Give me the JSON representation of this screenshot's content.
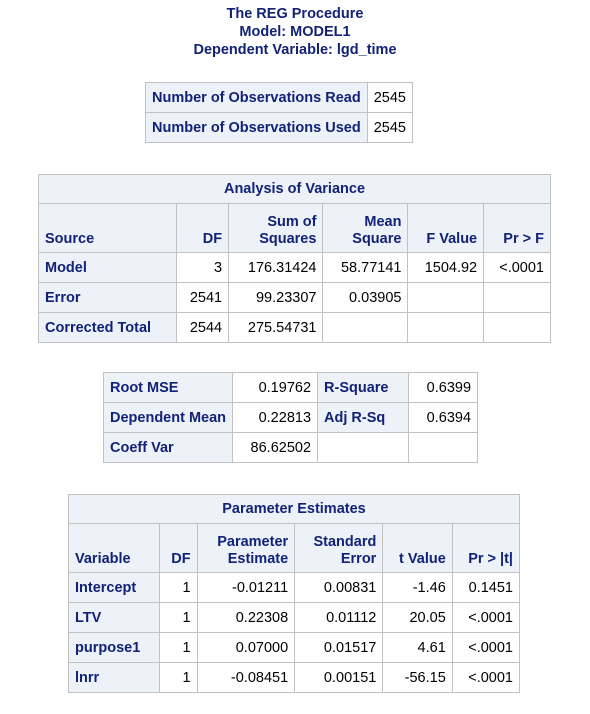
{
  "titles": {
    "line1": "The REG Procedure",
    "line2": "Model: MODEL1",
    "line3": "Dependent Variable: lgd_time"
  },
  "nobs": {
    "rows": [
      {
        "label": "Number of Observations Read",
        "value": "2545"
      },
      {
        "label": "Number of Observations Used",
        "value": "2545"
      }
    ]
  },
  "anova": {
    "title": "Analysis of Variance",
    "headers": {
      "source": "Source",
      "df": "DF",
      "ss_1": "Sum of",
      "ss_2": "Squares",
      "ms_1": "Mean",
      "ms_2": "Square",
      "f": "F Value",
      "p": "Pr > F"
    },
    "rows": [
      {
        "source": "Model",
        "df": "3",
        "ss": "176.31424",
        "ms": "58.77141",
        "f": "1504.92",
        "p": "<.0001"
      },
      {
        "source": "Error",
        "df": "2541",
        "ss": "99.23307",
        "ms": "0.03905",
        "f": "",
        "p": ""
      },
      {
        "source": "Corrected Total",
        "df": "2544",
        "ss": "275.54731",
        "ms": "",
        "f": "",
        "p": ""
      }
    ]
  },
  "fit": {
    "rows": [
      {
        "label1": "Root MSE",
        "value1": "0.19762",
        "label2": "R-Square",
        "value2": "0.6399"
      },
      {
        "label1": "Dependent Mean",
        "value1": "0.22813",
        "label2": "Adj R-Sq",
        "value2": "0.6394"
      },
      {
        "label1": "Coeff Var",
        "value1": "86.62502",
        "label2": "",
        "value2": ""
      }
    ]
  },
  "params": {
    "title": "Parameter Estimates",
    "headers": {
      "variable": "Variable",
      "df": "DF",
      "est_1": "Parameter",
      "est_2": "Estimate",
      "se_1": "Standard",
      "se_2": "Error",
      "t": "t Value",
      "p": "Pr > |t|"
    },
    "rows": [
      {
        "variable": "Intercept",
        "df": "1",
        "est": "-0.01211",
        "se": "0.00831",
        "t": "-1.46",
        "p": "0.1451"
      },
      {
        "variable": "LTV",
        "df": "1",
        "est": "0.22308",
        "se": "0.01112",
        "t": "20.05",
        "p": "<.0001"
      },
      {
        "variable": "purpose1",
        "df": "1",
        "est": "0.07000",
        "se": "0.01517",
        "t": "4.61",
        "p": "<.0001"
      },
      {
        "variable": "lnrr",
        "df": "1",
        "est": "-0.08451",
        "se": "0.00151",
        "t": "-56.15",
        "p": "<.0001"
      }
    ]
  }
}
